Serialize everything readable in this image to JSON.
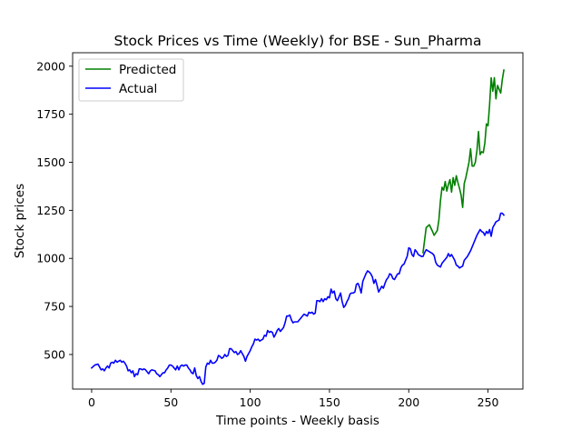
{
  "chart_data": {
    "type": "line",
    "title": "Stock Prices vs Time (Weekly) for BSE - Sun_Pharma",
    "xlabel": "Time points - Weekly basis",
    "ylabel": "Stock prices",
    "xlim": [
      -12,
      272
    ],
    "ylim": [
      320,
      2070
    ],
    "x_ticks": [
      0,
      50,
      100,
      150,
      200,
      250
    ],
    "y_ticks": [
      500,
      750,
      1000,
      1250,
      1500,
      1750,
      2000
    ],
    "grid": false,
    "legend_position": "top-left",
    "series": [
      {
        "name": "Predicted",
        "color": "#008000",
        "points": [
          [
            209,
            1030
          ],
          [
            211,
            1160
          ],
          [
            213,
            1175
          ],
          [
            215,
            1140
          ],
          [
            216,
            1120
          ],
          [
            218,
            1145
          ],
          [
            219,
            1200
          ],
          [
            220,
            1300
          ],
          [
            221,
            1370
          ],
          [
            222,
            1355
          ],
          [
            223,
            1400
          ],
          [
            224,
            1350
          ],
          [
            225,
            1385
          ],
          [
            226,
            1410
          ],
          [
            227,
            1345
          ],
          [
            228,
            1420
          ],
          [
            229,
            1380
          ],
          [
            230,
            1430
          ],
          [
            231,
            1395
          ],
          [
            232,
            1365
          ],
          [
            233,
            1330
          ],
          [
            234,
            1265
          ],
          [
            235,
            1390
          ],
          [
            236,
            1420
          ],
          [
            237,
            1460
          ],
          [
            238,
            1500
          ],
          [
            239,
            1570
          ],
          [
            240,
            1480
          ],
          [
            241,
            1480
          ],
          [
            242,
            1500
          ],
          [
            243,
            1560
          ],
          [
            244,
            1660
          ],
          [
            245,
            1540
          ],
          [
            246,
            1555
          ],
          [
            247,
            1550
          ],
          [
            248,
            1600
          ],
          [
            249,
            1700
          ],
          [
            250,
            1690
          ],
          [
            251,
            1800
          ],
          [
            252,
            1940
          ],
          [
            253,
            1870
          ],
          [
            254,
            1940
          ],
          [
            255,
            1830
          ],
          [
            256,
            1900
          ],
          [
            257,
            1880
          ],
          [
            258,
            1860
          ],
          [
            259,
            1930
          ],
          [
            260,
            1980
          ]
        ]
      },
      {
        "name": "Actual",
        "color": "#0000ff",
        "points": [
          [
            0,
            430
          ],
          [
            2,
            445
          ],
          [
            4,
            450
          ],
          [
            5,
            435
          ],
          [
            6,
            420
          ],
          [
            7,
            425
          ],
          [
            8,
            415
          ],
          [
            9,
            430
          ],
          [
            10,
            440
          ],
          [
            11,
            430
          ],
          [
            12,
            455
          ],
          [
            13,
            460
          ],
          [
            14,
            455
          ],
          [
            15,
            470
          ],
          [
            16,
            460
          ],
          [
            17,
            465
          ],
          [
            18,
            470
          ],
          [
            19,
            460
          ],
          [
            20,
            465
          ],
          [
            21,
            455
          ],
          [
            22,
            440
          ],
          [
            23,
            415
          ],
          [
            24,
            420
          ],
          [
            25,
            405
          ],
          [
            26,
            415
          ],
          [
            27,
            385
          ],
          [
            28,
            400
          ],
          [
            29,
            395
          ],
          [
            30,
            425
          ],
          [
            31,
            425
          ],
          [
            32,
            420
          ],
          [
            33,
            425
          ],
          [
            34,
            420
          ],
          [
            35,
            410
          ],
          [
            36,
            400
          ],
          [
            37,
            415
          ],
          [
            38,
            420
          ],
          [
            40,
            415
          ],
          [
            41,
            400
          ],
          [
            42,
            395
          ],
          [
            43,
            385
          ],
          [
            44,
            395
          ],
          [
            45,
            405
          ],
          [
            46,
            405
          ],
          [
            47,
            420
          ],
          [
            48,
            430
          ],
          [
            49,
            445
          ],
          [
            50,
            445
          ],
          [
            51,
            440
          ],
          [
            52,
            430
          ],
          [
            53,
            420
          ],
          [
            54,
            440
          ],
          [
            55,
            420
          ],
          [
            56,
            440
          ],
          [
            57,
            445
          ],
          [
            58,
            440
          ],
          [
            59,
            445
          ],
          [
            60,
            445
          ],
          [
            61,
            430
          ],
          [
            62,
            420
          ],
          [
            63,
            405
          ],
          [
            64,
            400
          ],
          [
            65,
            430
          ],
          [
            66,
            390
          ],
          [
            67,
            375
          ],
          [
            68,
            385
          ],
          [
            69,
            360
          ],
          [
            70,
            345
          ],
          [
            71,
            350
          ],
          [
            72,
            435
          ],
          [
            73,
            455
          ],
          [
            74,
            450
          ],
          [
            75,
            470
          ],
          [
            76,
            455
          ],
          [
            77,
            455
          ],
          [
            78,
            460
          ],
          [
            79,
            470
          ],
          [
            80,
            495
          ],
          [
            81,
            490
          ],
          [
            82,
            480
          ],
          [
            83,
            485
          ],
          [
            84,
            500
          ],
          [
            85,
            490
          ],
          [
            86,
            495
          ],
          [
            87,
            530
          ],
          [
            88,
            530
          ],
          [
            89,
            520
          ],
          [
            90,
            510
          ],
          [
            91,
            515
          ],
          [
            92,
            500
          ],
          [
            93,
            505
          ],
          [
            94,
            520
          ],
          [
            95,
            505
          ],
          [
            96,
            490
          ],
          [
            97,
            465
          ],
          [
            98,
            490
          ],
          [
            99,
            505
          ],
          [
            100,
            520
          ],
          [
            101,
            540
          ],
          [
            102,
            555
          ],
          [
            103,
            580
          ],
          [
            104,
            575
          ],
          [
            105,
            580
          ],
          [
            106,
            570
          ],
          [
            107,
            575
          ],
          [
            108,
            580
          ],
          [
            109,
            600
          ],
          [
            110,
            595
          ],
          [
            111,
            625
          ],
          [
            112,
            615
          ],
          [
            113,
            620
          ],
          [
            114,
            615
          ],
          [
            115,
            590
          ],
          [
            116,
            605
          ],
          [
            117,
            625
          ],
          [
            118,
            635
          ],
          [
            119,
            620
          ],
          [
            120,
            630
          ],
          [
            121,
            640
          ],
          [
            122,
            665
          ],
          [
            123,
            700
          ],
          [
            124,
            700
          ],
          [
            125,
            705
          ],
          [
            126,
            680
          ],
          [
            127,
            665
          ],
          [
            128,
            670
          ],
          [
            129,
            670
          ],
          [
            130,
            670
          ],
          [
            131,
            680
          ],
          [
            132,
            690
          ],
          [
            133,
            700
          ],
          [
            134,
            710
          ],
          [
            135,
            705
          ],
          [
            136,
            700
          ],
          [
            137,
            720
          ],
          [
            138,
            715
          ],
          [
            139,
            720
          ],
          [
            140,
            710
          ],
          [
            141,
            715
          ],
          [
            142,
            780
          ],
          [
            143,
            780
          ],
          [
            144,
            775
          ],
          [
            145,
            790
          ],
          [
            146,
            775
          ],
          [
            147,
            790
          ],
          [
            148,
            785
          ],
          [
            149,
            800
          ],
          [
            150,
            795
          ],
          [
            151,
            840
          ],
          [
            152,
            820
          ],
          [
            153,
            830
          ],
          [
            154,
            790
          ],
          [
            155,
            780
          ],
          [
            156,
            800
          ],
          [
            157,
            820
          ],
          [
            158,
            775
          ],
          [
            159,
            745
          ],
          [
            160,
            755
          ],
          [
            161,
            775
          ],
          [
            162,
            790
          ],
          [
            163,
            815
          ],
          [
            164,
            820
          ],
          [
            165,
            820
          ],
          [
            166,
            825
          ],
          [
            167,
            865
          ],
          [
            168,
            870
          ],
          [
            169,
            850
          ],
          [
            170,
            820
          ],
          [
            171,
            880
          ],
          [
            172,
            900
          ],
          [
            173,
            920
          ],
          [
            174,
            935
          ],
          [
            175,
            930
          ],
          [
            176,
            920
          ],
          [
            177,
            905
          ],
          [
            178,
            870
          ],
          [
            179,
            890
          ],
          [
            180,
            860
          ],
          [
            181,
            825
          ],
          [
            182,
            840
          ],
          [
            183,
            855
          ],
          [
            184,
            845
          ],
          [
            185,
            870
          ],
          [
            186,
            890
          ],
          [
            187,
            900
          ],
          [
            188,
            920
          ],
          [
            189,
            915
          ],
          [
            190,
            895
          ],
          [
            191,
            890
          ],
          [
            192,
            905
          ],
          [
            193,
            920
          ],
          [
            194,
            920
          ],
          [
            195,
            950
          ],
          [
            196,
            965
          ],
          [
            197,
            970
          ],
          [
            198,
            990
          ],
          [
            199,
            1010
          ],
          [
            200,
            1055
          ],
          [
            201,
            1050
          ],
          [
            202,
            1020
          ],
          [
            203,
            1010
          ],
          [
            204,
            1045
          ],
          [
            205,
            1035
          ],
          [
            206,
            1020
          ],
          [
            207,
            1015
          ],
          [
            208,
            1010
          ],
          [
            209,
            1010
          ],
          [
            210,
            1030
          ],
          [
            211,
            1045
          ],
          [
            212,
            1040
          ],
          [
            213,
            1035
          ],
          [
            214,
            1030
          ],
          [
            215,
            1025
          ],
          [
            216,
            1015
          ],
          [
            217,
            980
          ],
          [
            218,
            965
          ],
          [
            219,
            960
          ],
          [
            220,
            955
          ],
          [
            221,
            975
          ],
          [
            222,
            985
          ],
          [
            223,
            995
          ],
          [
            224,
            1005
          ],
          [
            225,
            1025
          ],
          [
            226,
            1010
          ],
          [
            227,
            1020
          ],
          [
            228,
            1005
          ],
          [
            229,
            990
          ],
          [
            230,
            965
          ],
          [
            231,
            960
          ],
          [
            232,
            950
          ],
          [
            233,
            955
          ],
          [
            234,
            960
          ],
          [
            235,
            990
          ],
          [
            236,
            1000
          ],
          [
            237,
            1010
          ],
          [
            238,
            1025
          ],
          [
            239,
            1040
          ],
          [
            240,
            1060
          ],
          [
            241,
            1080
          ],
          [
            242,
            1100
          ],
          [
            243,
            1120
          ],
          [
            244,
            1135
          ],
          [
            245,
            1150
          ],
          [
            246,
            1140
          ],
          [
            247,
            1135
          ],
          [
            248,
            1120
          ],
          [
            249,
            1140
          ],
          [
            250,
            1130
          ],
          [
            251,
            1150
          ],
          [
            252,
            1115
          ],
          [
            253,
            1160
          ],
          [
            254,
            1175
          ],
          [
            255,
            1190
          ],
          [
            256,
            1195
          ],
          [
            257,
            1200
          ],
          [
            258,
            1235
          ],
          [
            259,
            1235
          ],
          [
            260,
            1225
          ]
        ]
      }
    ]
  }
}
